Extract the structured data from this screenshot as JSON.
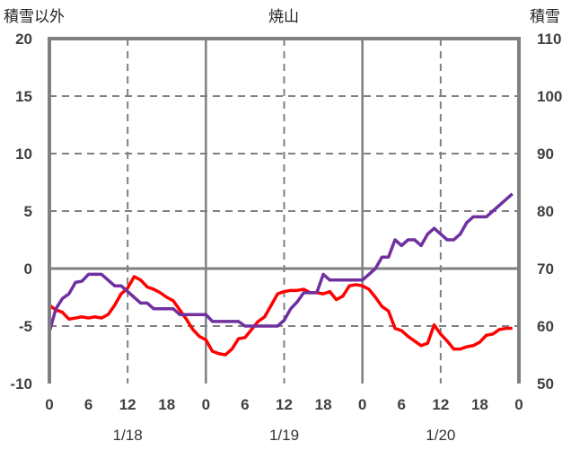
{
  "chart_data": {
    "type": "line",
    "title": "焼山",
    "left_axis_label": "積雪以外",
    "right_axis_label": "積雪",
    "left_ylim": [
      -10,
      20
    ],
    "left_ticks": [
      "20",
      "15",
      "10",
      "5",
      "0",
      "-5",
      "-10"
    ],
    "right_ylim": [
      50,
      110
    ],
    "right_ticks": [
      "110",
      "100",
      "90",
      "80",
      "70",
      "60",
      "50"
    ],
    "x_hours_range": [
      0,
      72
    ],
    "x_tick_labels": [
      "0",
      "6",
      "12",
      "18",
      "0",
      "6",
      "12",
      "18",
      "0",
      "6",
      "12",
      "18",
      "0"
    ],
    "date_labels": [
      "1/18",
      "1/19",
      "1/20"
    ],
    "grid": true,
    "series": [
      {
        "name": "積雪以外",
        "axis": "left",
        "color": "#ff0000",
        "values": [
          -3.2,
          -3.6,
          -3.8,
          -4.4,
          -4.3,
          -4.2,
          -4.3,
          -4.2,
          -4.3,
          -4.0,
          -3.2,
          -2.2,
          -1.7,
          -0.7,
          -1.0,
          -1.6,
          -1.8,
          -2.1,
          -2.5,
          -2.8,
          -3.6,
          -4.4,
          -5.3,
          -5.9,
          -6.2,
          -7.2,
          -7.4,
          -7.5,
          -7.0,
          -6.1,
          -6.0,
          -5.3,
          -4.6,
          -4.2,
          -3.2,
          -2.2,
          -2.0,
          -1.9,
          -1.9,
          -1.8,
          -2.1,
          -2.1,
          -2.2,
          -2.0,
          -2.7,
          -2.4,
          -1.5,
          -1.4,
          -1.5,
          -1.8,
          -2.5,
          -3.3,
          -3.7,
          -5.2,
          -5.4,
          -5.9,
          -6.3,
          -6.7,
          -6.5,
          -4.9,
          -5.7,
          -6.3,
          -7.0,
          -7.0,
          -6.8,
          -6.7,
          -6.4,
          -5.8,
          -5.7,
          -5.3,
          -5.2,
          -5.2
        ]
      },
      {
        "name": "積雪",
        "axis": "right",
        "color": "#7030a0",
        "values": [
          59,
          63,
          64.8,
          65.6,
          67.6,
          67.8,
          69,
          69,
          69,
          68,
          67,
          67,
          66,
          65,
          64,
          64,
          63,
          63,
          63,
          63,
          62,
          62,
          62,
          62,
          62,
          60.8,
          60.8,
          60.8,
          60.8,
          60.8,
          60,
          60,
          60,
          60,
          60,
          60,
          61,
          63,
          64.2,
          65.8,
          65.8,
          65.8,
          69,
          68,
          68,
          68,
          68,
          68,
          68,
          69,
          70,
          72,
          72,
          75,
          74,
          75,
          75,
          74,
          76,
          77,
          76,
          75,
          75,
          76,
          78,
          79,
          79,
          79,
          80,
          81,
          82,
          83
        ]
      }
    ]
  }
}
